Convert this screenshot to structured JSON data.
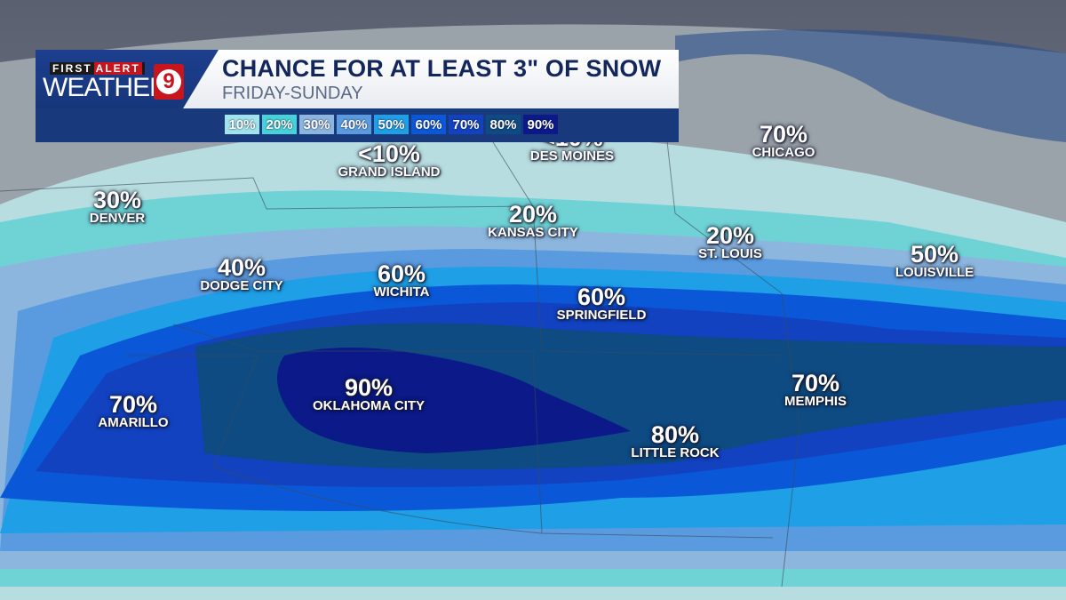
{
  "header": {
    "logo_top": "FIRST",
    "logo_top_alert": "ALERT",
    "logo_main": "WEATHER",
    "logo_channel": "9",
    "title": "CHANCE FOR AT LEAST 3\" OF SNOW",
    "subtitle": "FRIDAY-SUNDAY"
  },
  "legend": [
    {
      "label": "10%",
      "color": "#9fe4ea"
    },
    {
      "label": "20%",
      "color": "#46d2d8"
    },
    {
      "label": "30%",
      "color": "#8cb6de"
    },
    {
      "label": "40%",
      "color": "#5a9be0"
    },
    {
      "label": "50%",
      "color": "#1e9fe6"
    },
    {
      "label": "60%",
      "color": "#0a58d8"
    },
    {
      "label": "70%",
      "color": "#1242c0"
    },
    {
      "label": "80%",
      "color": "#0e4b82"
    },
    {
      "label": "90%",
      "color": "#0b1a88"
    }
  ],
  "cities": [
    {
      "name": "GRAND ISLAND",
      "value": "<10%"
    },
    {
      "name": "DES MOINES",
      "value": "<10%"
    },
    {
      "name": "CHICAGO",
      "value": "70%"
    },
    {
      "name": "DENVER",
      "value": "30%"
    },
    {
      "name": "KANSAS CITY",
      "value": "20%"
    },
    {
      "name": "ST. LOUIS",
      "value": "20%"
    },
    {
      "name": "LOUISVILLE",
      "value": "50%"
    },
    {
      "name": "DODGE CITY",
      "value": "40%"
    },
    {
      "name": "WICHITA",
      "value": "60%"
    },
    {
      "name": "SPRINGFIELD",
      "value": "60%"
    },
    {
      "name": "OKLAHOMA CITY",
      "value": "90%"
    },
    {
      "name": "AMARILLO",
      "value": "70%"
    },
    {
      "name": "MEMPHIS",
      "value": "70%"
    },
    {
      "name": "LITTLE ROCK",
      "value": "80%"
    }
  ]
}
